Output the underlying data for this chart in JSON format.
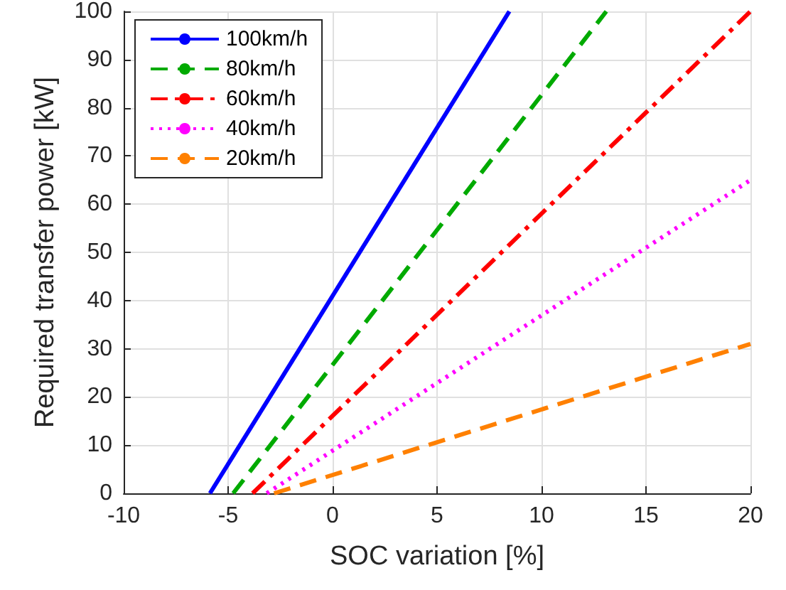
{
  "chart_data": {
    "type": "line",
    "xlabel": "SOC variation [%]",
    "ylabel": "Required transfer power [kW]",
    "xlim": [
      -10,
      20
    ],
    "xticks": [
      -10,
      -5,
      0,
      5,
      10,
      15,
      20
    ],
    "ylim": [
      0,
      100
    ],
    "yticks": [
      0,
      10,
      20,
      30,
      40,
      50,
      60,
      70,
      80,
      90,
      100
    ],
    "grid": true,
    "legend": "top left",
    "marker": "none",
    "series": [
      {
        "name": "100km/h",
        "color": "#0000ff",
        "line_style": "solid",
        "x": [
          -5.87,
          8.46
        ],
        "values": [
          0,
          100
        ]
      },
      {
        "name": "80km/h",
        "color": "#00aa00",
        "line_style": "dashed",
        "x": [
          -4.76,
          13.1
        ],
        "values": [
          0,
          100
        ]
      },
      {
        "name": "60km/h",
        "color": "#ff0000",
        "line_style": "dashdot",
        "x": [
          -3.83,
          20
        ],
        "values": [
          0,
          100
        ]
      },
      {
        "name": "40km/h",
        "color": "#ff00ff",
        "line_style": "dotted",
        "x": [
          -3.15,
          20
        ],
        "values": [
          0,
          65
        ]
      },
      {
        "name": "20km/h",
        "color": "#ff8000",
        "line_style": "dashed",
        "x": [
          -2.8,
          20
        ],
        "values": [
          0,
          31
        ]
      }
    ]
  }
}
